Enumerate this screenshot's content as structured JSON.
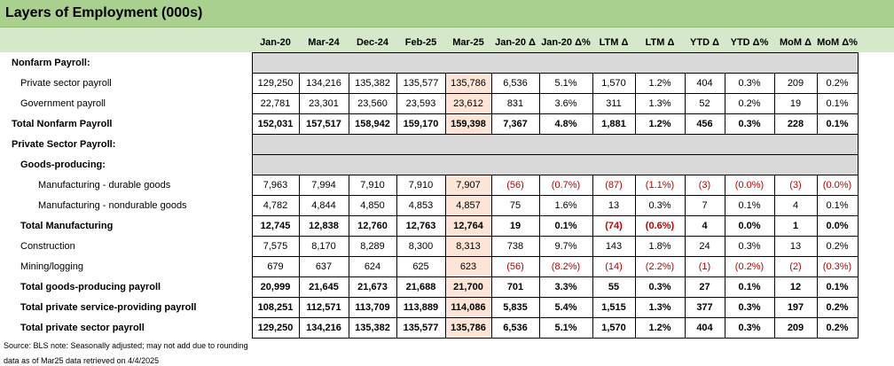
{
  "title": "Layers of Employment (000s)",
  "columns": [
    "Jan-20",
    "Mar-24",
    "Dec-24",
    "Feb-25",
    "Mar-25",
    "Jan-20 Δ",
    "Jan-20 Δ%",
    "LTM Δ",
    "LTM Δ",
    "YTD Δ",
    "YTD Δ%",
    "MoM Δ",
    "MoM Δ%"
  ],
  "colors": {
    "title_bg": "#a9d08e",
    "header_bg": "#d5e8c9",
    "highlight": "#fce4d6",
    "negative": "#c00000",
    "section_bg": "#d9d9d9"
  },
  "rows": [
    {
      "label": "Nonfarm Payroll:",
      "type": "section",
      "indent": 0,
      "values": []
    },
    {
      "label": "Private sector payroll",
      "type": "data",
      "indent": 1,
      "values": [
        "129,250",
        "134,216",
        "135,382",
        "135,577",
        "135,786",
        "6,536",
        "5.1%",
        "1,570",
        "1.2%",
        "404",
        "0.3%",
        "209",
        "0.2%"
      ]
    },
    {
      "label": "Government payroll",
      "type": "data",
      "indent": 1,
      "values": [
        "22,781",
        "23,301",
        "23,560",
        "23,593",
        "23,612",
        "831",
        "3.6%",
        "311",
        "1.3%",
        "52",
        "0.2%",
        "19",
        "0.1%"
      ]
    },
    {
      "label": "Total Nonfarm Payroll",
      "type": "total",
      "indent": 0,
      "values": [
        "152,031",
        "157,517",
        "158,942",
        "159,170",
        "159,398",
        "7,367",
        "4.8%",
        "1,881",
        "1.2%",
        "456",
        "0.3%",
        "228",
        "0.1%"
      ]
    },
    {
      "label": "Private Sector Payroll:",
      "type": "section",
      "indent": 0,
      "values": []
    },
    {
      "label": "Goods-producing:",
      "type": "section",
      "indent": 1,
      "values": []
    },
    {
      "label": "Manufacturing - durable goods",
      "type": "data",
      "indent": 2,
      "values": [
        "7,963",
        "7,994",
        "7,910",
        "7,910",
        "7,907",
        "(56)",
        "(0.7%)",
        "(87)",
        "(1.1%)",
        "(3)",
        "(0.0%)",
        "(3)",
        "(0.0%)"
      ]
    },
    {
      "label": "Manufacturing - nondurable goods",
      "type": "data",
      "indent": 2,
      "values": [
        "4,782",
        "4,844",
        "4,850",
        "4,853",
        "4,857",
        "75",
        "1.6%",
        "13",
        "0.3%",
        "7",
        "0.1%",
        "4",
        "0.1%"
      ]
    },
    {
      "label": "Total Manufacturing",
      "type": "total",
      "indent": 1,
      "values": [
        "12,745",
        "12,838",
        "12,760",
        "12,763",
        "12,764",
        "19",
        "0.1%",
        "(74)",
        "(0.6%)",
        "4",
        "0.0%",
        "1",
        "0.0%"
      ]
    },
    {
      "label": "Construction",
      "type": "data",
      "indent": 1,
      "values": [
        "7,575",
        "8,170",
        "8,289",
        "8,300",
        "8,313",
        "738",
        "9.7%",
        "143",
        "1.8%",
        "24",
        "0.3%",
        "13",
        "0.2%"
      ]
    },
    {
      "label": "Mining/logging",
      "type": "data",
      "indent": 1,
      "values": [
        "679",
        "637",
        "624",
        "625",
        "623",
        "(56)",
        "(8.2%)",
        "(14)",
        "(2.2%)",
        "(1)",
        "(0.2%)",
        "(2)",
        "(0.3%)"
      ]
    },
    {
      "label": "Total goods-producing payroll",
      "type": "total",
      "indent": 1,
      "values": [
        "20,999",
        "21,645",
        "21,673",
        "21,688",
        "21,700",
        "701",
        "3.3%",
        "55",
        "0.3%",
        "27",
        "0.1%",
        "12",
        "0.1%"
      ]
    },
    {
      "label": "Total private service-providing payroll",
      "type": "total",
      "indent": 1,
      "values": [
        "108,251",
        "112,571",
        "113,709",
        "113,889",
        "114,086",
        "5,835",
        "5.4%",
        "1,515",
        "1.3%",
        "377",
        "0.3%",
        "197",
        "0.2%"
      ]
    },
    {
      "label": "Total private sector payroll",
      "type": "total",
      "indent": 1,
      "values": [
        "129,250",
        "134,216",
        "135,382",
        "135,577",
        "135,786",
        "6,536",
        "5.1%",
        "1,570",
        "1.2%",
        "404",
        "0.3%",
        "209",
        "0.2%"
      ]
    }
  ],
  "footer": {
    "line1": "Source: BLS   note: Seasonally adjusted; may not add due to rounding",
    "line2": "data as of Mar25   data retrieved on 4/4/2025"
  }
}
